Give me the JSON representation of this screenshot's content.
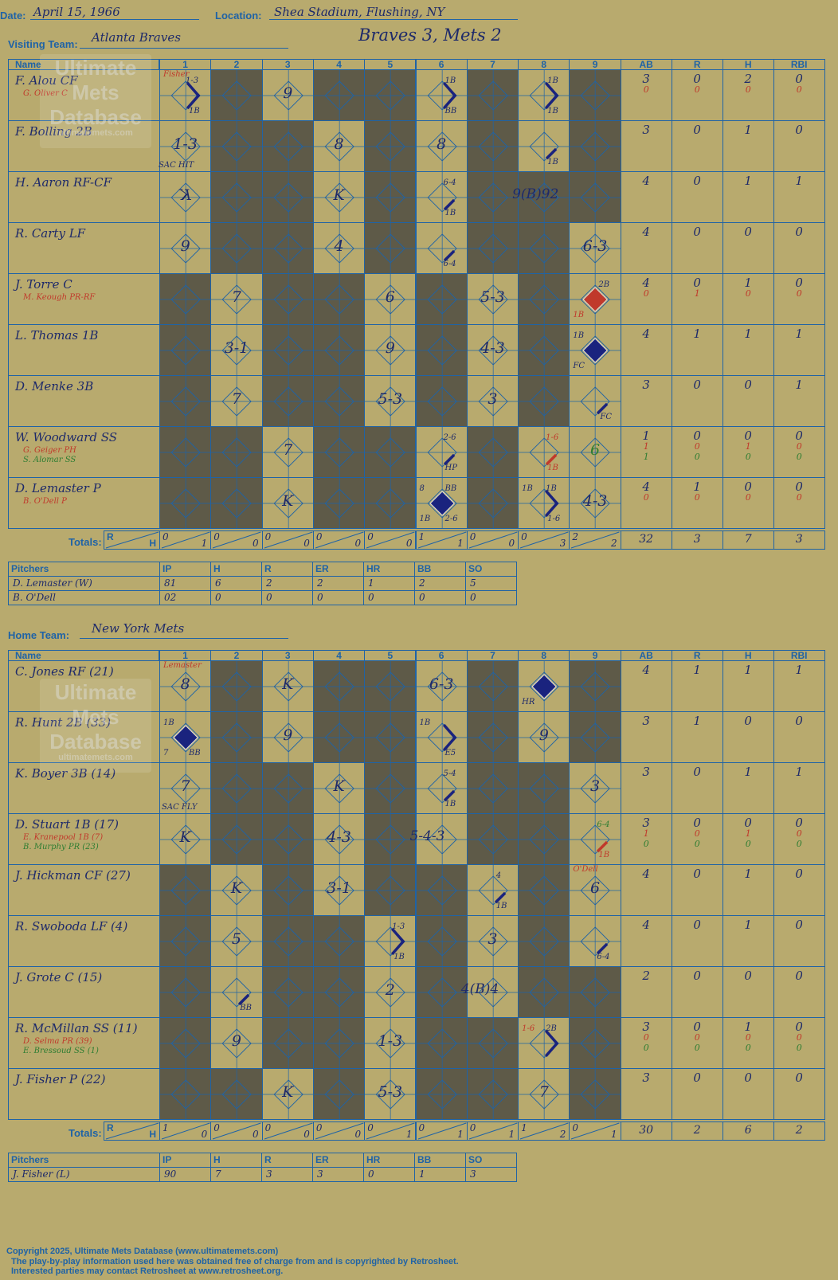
{
  "header": {
    "date_label": "Date:",
    "date": "April 15, 1966",
    "location_label": "Location:",
    "location": "Shea Stadium, Flushing, NY",
    "visiting_label": "Visiting Team:",
    "visiting_team": "Atlanta Braves",
    "home_label": "Home Team:",
    "home_team": "New York Mets",
    "score_title": "Braves 3, Mets 2"
  },
  "columns": {
    "name": "Name",
    "innings": [
      "1",
      "2",
      "3",
      "4",
      "5",
      "6",
      "7",
      "8",
      "9"
    ],
    "stats": [
      "AB",
      "R",
      "H",
      "RBI"
    ],
    "totals_label": "Totals:",
    "r_label": "R",
    "h_label": "H"
  },
  "watermark": {
    "line1": "Ultimate",
    "line2": "Mets",
    "line3": "Database",
    "url": "ultimatemets.com"
  },
  "visitors": {
    "players": [
      {
        "name": "F. Alou CF",
        "subs": [
          {
            "name": "G. Oliver C",
            "color": "red"
          }
        ],
        "ab": [
          "3",
          "0"
        ],
        "r": [
          "0",
          "0"
        ],
        "h": [
          "2",
          "0"
        ],
        "rbi": [
          "0",
          "0"
        ]
      },
      {
        "name": "F. Bolling 2B",
        "subs": [],
        "ab": [
          "3"
        ],
        "r": [
          "0"
        ],
        "h": [
          "1"
        ],
        "rbi": [
          "0"
        ]
      },
      {
        "name": "H. Aaron RF-CF",
        "subs": [],
        "ab": [
          "4"
        ],
        "r": [
          "0"
        ],
        "h": [
          "1"
        ],
        "rbi": [
          "1"
        ]
      },
      {
        "name": "R. Carty LF",
        "subs": [],
        "ab": [
          "4"
        ],
        "r": [
          "0"
        ],
        "h": [
          "0"
        ],
        "rbi": [
          "0"
        ]
      },
      {
        "name": "J. Torre C",
        "subs": [
          {
            "name": "M. Keough PR-RF",
            "color": "red"
          }
        ],
        "ab": [
          "4",
          "0"
        ],
        "r": [
          "0",
          "1"
        ],
        "h": [
          "1",
          "0"
        ],
        "rbi": [
          "0",
          "0"
        ]
      },
      {
        "name": "L. Thomas 1B",
        "subs": [],
        "ab": [
          "4"
        ],
        "r": [
          "1"
        ],
        "h": [
          "1"
        ],
        "rbi": [
          "1"
        ]
      },
      {
        "name": "D. Menke 3B",
        "subs": [],
        "ab": [
          "3"
        ],
        "r": [
          "0"
        ],
        "h": [
          "0"
        ],
        "rbi": [
          "1"
        ]
      },
      {
        "name": "W. Woodward SS",
        "subs": [
          {
            "name": "G. Geiger PH",
            "color": "red"
          },
          {
            "name": "S. Alomar SS",
            "color": "grn"
          }
        ],
        "ab": [
          "1",
          "1",
          "1"
        ],
        "r": [
          "0",
          "0",
          "0"
        ],
        "h": [
          "0",
          "1",
          "0"
        ],
        "rbi": [
          "0",
          "0",
          "0"
        ]
      },
      {
        "name": "D. Lemaster P",
        "subs": [
          {
            "name": "B. O'Dell P",
            "color": "red"
          }
        ],
        "ab": [
          "4",
          "0"
        ],
        "r": [
          "1",
          "0"
        ],
        "h": [
          "0",
          "0"
        ],
        "rbi": [
          "0",
          "0"
        ]
      }
    ],
    "totals": {
      "innings": [
        [
          "0",
          "1"
        ],
        [
          "0",
          "0"
        ],
        [
          "0",
          "0"
        ],
        [
          "0",
          "0"
        ],
        [
          "0",
          "0"
        ],
        [
          "1",
          "1"
        ],
        [
          "0",
          "0"
        ],
        [
          "0",
          "3"
        ],
        [
          "2",
          "2"
        ]
      ],
      "ab": "32",
      "r": "3",
      "h": "7",
      "rbi": "3"
    },
    "pitchers_label": "Pitchers",
    "pitcher_cols": [
      "IP",
      "H",
      "R",
      "ER",
      "HR",
      "BB",
      "SO"
    ],
    "pitchers": [
      {
        "name": "D. Lemaster (W)",
        "vals": [
          "81",
          "6",
          "2",
          "2",
          "1",
          "2",
          "5"
        ]
      },
      {
        "name": "B. O'Dell",
        "vals": [
          "02",
          "0",
          "0",
          "0",
          "0",
          "0",
          "0"
        ]
      }
    ]
  },
  "home": {
    "players": [
      {
        "name": "C. Jones RF (21)",
        "subs": [],
        "ab": [
          "4"
        ],
        "r": [
          "1"
        ],
        "h": [
          "1"
        ],
        "rbi": [
          "1"
        ]
      },
      {
        "name": "R. Hunt 2B (33)",
        "subs": [],
        "ab": [
          "3"
        ],
        "r": [
          "1"
        ],
        "h": [
          "0"
        ],
        "rbi": [
          "0"
        ]
      },
      {
        "name": "K. Boyer 3B (14)",
        "subs": [],
        "ab": [
          "3"
        ],
        "r": [
          "0"
        ],
        "h": [
          "1"
        ],
        "rbi": [
          "1"
        ]
      },
      {
        "name": "D. Stuart 1B (17)",
        "subs": [
          {
            "name": "E. Kranepool 1B (7)",
            "color": "red"
          },
          {
            "name": "B. Murphy PR (23)",
            "color": "grn"
          }
        ],
        "ab": [
          "3",
          "1",
          "0"
        ],
        "r": [
          "0",
          "0",
          "0"
        ],
        "h": [
          "0",
          "1",
          "0"
        ],
        "rbi": [
          "0",
          "0",
          "0"
        ]
      },
      {
        "name": "J. Hickman CF (27)",
        "subs": [],
        "ab": [
          "4"
        ],
        "r": [
          "0"
        ],
        "h": [
          "1"
        ],
        "rbi": [
          "0"
        ]
      },
      {
        "name": "R. Swoboda LF (4)",
        "subs": [],
        "ab": [
          "4"
        ],
        "r": [
          "0"
        ],
        "h": [
          "1"
        ],
        "rbi": [
          "0"
        ]
      },
      {
        "name": "J. Grote C (15)",
        "subs": [],
        "ab": [
          "2"
        ],
        "r": [
          "0"
        ],
        "h": [
          "0"
        ],
        "rbi": [
          "0"
        ]
      },
      {
        "name": "R. McMillan SS (11)",
        "subs": [
          {
            "name": "D. Selma PR (39)",
            "color": "red"
          },
          {
            "name": "E. Bressoud SS (1)",
            "color": "grn"
          }
        ],
        "ab": [
          "3",
          "0",
          "0"
        ],
        "r": [
          "0",
          "0",
          "0"
        ],
        "h": [
          "1",
          "0",
          "0"
        ],
        "rbi": [
          "0",
          "0",
          "0"
        ]
      },
      {
        "name": "J. Fisher P (22)",
        "subs": [],
        "ab": [
          "3"
        ],
        "r": [
          "0"
        ],
        "h": [
          "0"
        ],
        "rbi": [
          "0"
        ]
      }
    ],
    "totals": {
      "innings": [
        [
          "1",
          "0"
        ],
        [
          "0",
          "0"
        ],
        [
          "0",
          "0"
        ],
        [
          "0",
          "0"
        ],
        [
          "0",
          "1"
        ],
        [
          "0",
          "1"
        ],
        [
          "0",
          "1"
        ],
        [
          "1",
          "2"
        ],
        [
          "0",
          "1"
        ]
      ],
      "ab": "30",
      "r": "2",
      "h": "6",
      "rbi": "2"
    },
    "pitchers_label": "Pitchers",
    "pitcher_cols": [
      "IP",
      "H",
      "R",
      "ER",
      "HR",
      "BB",
      "SO"
    ],
    "pitchers": [
      {
        "name": "J. Fisher (L)",
        "vals": [
          "90",
          "7",
          "3",
          "3",
          "0",
          "1",
          "3"
        ]
      }
    ]
  },
  "visitor_plays": [
    {
      "row": 0,
      "col": 0,
      "text": "",
      "notes": [
        {
          "t": "Fisher",
          "x": 4,
          "y": -2,
          "c": "red"
        },
        {
          "t": "1-3",
          "x": 32,
          "y": 6
        },
        {
          "t": "1B",
          "x": 36,
          "y": 44
        }
      ],
      "path": "r"
    },
    {
      "row": 0,
      "col": 2,
      "text": "9"
    },
    {
      "row": 0,
      "col": 5,
      "text": "",
      "notes": [
        {
          "t": "1B",
          "x": 36,
          "y": 6
        },
        {
          "t": "BB",
          "x": 36,
          "y": 44
        }
      ],
      "path": "r"
    },
    {
      "row": 0,
      "col": 7,
      "text": "",
      "notes": [
        {
          "t": "1B",
          "x": 36,
          "y": 6
        },
        {
          "t": "1B",
          "x": 36,
          "y": 44
        }
      ],
      "path": "r"
    },
    {
      "row": 1,
      "col": 0,
      "text": "1-3",
      "notes": [
        {
          "t": "SAC HIT",
          "x": -2,
          "y": 48
        }
      ]
    },
    {
      "row": 1,
      "col": 3,
      "text": "8"
    },
    {
      "row": 1,
      "col": 5,
      "text": "8"
    },
    {
      "row": 1,
      "col": 7,
      "text": "",
      "notes": [
        {
          "t": "1B",
          "x": 36,
          "y": 44
        }
      ],
      "path": "s"
    },
    {
      "row": 2,
      "col": 0,
      "text": "K",
      "mirror": true
    },
    {
      "row": 2,
      "col": 3,
      "text": "K"
    },
    {
      "row": 2,
      "col": 5,
      "text": "",
      "notes": [
        {
          "t": "6-4",
          "x": 34,
          "y": 6
        },
        {
          "t": "1B",
          "x": 36,
          "y": 44
        }
      ],
      "path": "s"
    },
    {
      "row": 2,
      "col": 7,
      "text": "9(B)92",
      "wide": true
    },
    {
      "row": 3,
      "col": 0,
      "text": "9"
    },
    {
      "row": 3,
      "col": 3,
      "text": "4"
    },
    {
      "row": 3,
      "col": 5,
      "text": "",
      "notes": [
        {
          "t": "6-4",
          "x": 34,
          "y": 44
        }
      ],
      "path": "s"
    },
    {
      "row": 3,
      "col": 8,
      "text": "6-3"
    },
    {
      "row": 4,
      "col": 1,
      "text": "7"
    },
    {
      "row": 4,
      "col": 4,
      "text": "6"
    },
    {
      "row": 4,
      "col": 6,
      "text": "5-3"
    },
    {
      "row": 4,
      "col": 8,
      "text": "",
      "notes": [
        {
          "t": "2B",
          "x": 36,
          "y": 6
        },
        {
          "t": "1B",
          "x": 4,
          "y": 44,
          "c": "red"
        }
      ],
      "fill": "red"
    },
    {
      "row": 5,
      "col": 1,
      "text": "3-1"
    },
    {
      "row": 5,
      "col": 4,
      "text": "9"
    },
    {
      "row": 5,
      "col": 6,
      "text": "4-3"
    },
    {
      "row": 5,
      "col": 8,
      "text": "",
      "notes": [
        {
          "t": "1B",
          "x": 4,
          "y": 6
        },
        {
          "t": "FC",
          "x": 4,
          "y": 44
        }
      ],
      "fill": "navy"
    },
    {
      "row": 6,
      "col": 1,
      "text": "7"
    },
    {
      "row": 6,
      "col": 4,
      "text": "5-3"
    },
    {
      "row": 6,
      "col": 6,
      "text": "3"
    },
    {
      "row": 6,
      "col": 8,
      "text": "",
      "notes": [
        {
          "t": "FC",
          "x": 38,
          "y": 44
        }
      ],
      "path": "s"
    },
    {
      "row": 7,
      "col": 2,
      "text": "7"
    },
    {
      "row": 7,
      "col": 5,
      "text": "",
      "notes": [
        {
          "t": "2-6",
          "x": 34,
          "y": 6
        },
        {
          "t": "HP",
          "x": 36,
          "y": 44
        }
      ],
      "path": "s"
    },
    {
      "row": 7,
      "col": 7,
      "text": "",
      "notes": [
        {
          "t": "1-6",
          "x": 34,
          "y": 6,
          "c": "red"
        },
        {
          "t": "1B",
          "x": 36,
          "y": 44,
          "c": "red"
        }
      ],
      "path": "sred"
    },
    {
      "row": 7,
      "col": 8,
      "text": "6",
      "green": true
    },
    {
      "row": 8,
      "col": 2,
      "text": "K"
    },
    {
      "row": 8,
      "col": 5,
      "text": "",
      "notes": [
        {
          "t": "8",
          "x": 4,
          "y": 6
        },
        {
          "t": "BB",
          "x": 36,
          "y": 6
        },
        {
          "t": "1B",
          "x": 4,
          "y": 44
        },
        {
          "t": "2-6",
          "x": 36,
          "y": 44
        }
      ],
      "fill": "navy"
    },
    {
      "row": 8,
      "col": 7,
      "text": "",
      "notes": [
        {
          "t": "1B",
          "x": 4,
          "y": 6
        },
        {
          "t": "1B",
          "x": 34,
          "y": 6
        },
        {
          "t": "1-6",
          "x": 36,
          "y": 44
        }
      ],
      "path": "r"
    },
    {
      "row": 8,
      "col": 8,
      "text": "4-3"
    }
  ],
  "home_plays": [
    {
      "row": 0,
      "col": 0,
      "text": "8",
      "notes": [
        {
          "t": "Lemaster",
          "x": 4,
          "y": -2,
          "c": "red"
        }
      ]
    },
    {
      "row": 0,
      "col": 2,
      "text": "K"
    },
    {
      "row": 0,
      "col": 5,
      "text": "6-3"
    },
    {
      "row": 0,
      "col": 7,
      "text": "",
      "notes": [
        {
          "t": "HR",
          "x": 4,
          "y": 44
        }
      ],
      "fill": "navy"
    },
    {
      "row": 1,
      "col": 0,
      "text": "",
      "notes": [
        {
          "t": "1B",
          "x": 4,
          "y": 6
        },
        {
          "t": "7",
          "x": 4,
          "y": 44
        },
        {
          "t": "BB",
          "x": 36,
          "y": 44
        }
      ],
      "fill": "navy"
    },
    {
      "row": 1,
      "col": 2,
      "text": "9"
    },
    {
      "row": 1,
      "col": 5,
      "text": "",
      "notes": [
        {
          "t": "1B",
          "x": 4,
          "y": 6
        },
        {
          "t": "E5",
          "x": 36,
          "y": 44
        }
      ],
      "path": "r"
    },
    {
      "row": 1,
      "col": 7,
      "text": "9"
    },
    {
      "row": 2,
      "col": 0,
      "text": "7",
      "notes": [
        {
          "t": "SAC FLY",
          "x": 2,
          "y": 48
        }
      ]
    },
    {
      "row": 2,
      "col": 3,
      "text": "K"
    },
    {
      "row": 2,
      "col": 5,
      "text": "",
      "notes": [
        {
          "t": "5-4",
          "x": 34,
          "y": 6
        },
        {
          "t": "1B",
          "x": 36,
          "y": 44
        }
      ],
      "path": "s"
    },
    {
      "row": 2,
      "col": 8,
      "text": "3"
    },
    {
      "row": 3,
      "col": 0,
      "text": "K"
    },
    {
      "row": 3,
      "col": 3,
      "text": "4-3"
    },
    {
      "row": 3,
      "col": 5,
      "text": "5-4-3",
      "wide": true
    },
    {
      "row": 3,
      "col": 8,
      "text": "",
      "notes": [
        {
          "t": "6-4",
          "x": 34,
          "y": 6,
          "c": "grn"
        },
        {
          "t": "1B",
          "x": 36,
          "y": 44,
          "c": "red"
        }
      ],
      "path": "sred"
    },
    {
      "row": 4,
      "col": 1,
      "text": "K"
    },
    {
      "row": 4,
      "col": 3,
      "text": "3-1"
    },
    {
      "row": 4,
      "col": 6,
      "text": "",
      "notes": [
        {
          "t": "4",
          "x": 36,
          "y": 6
        },
        {
          "t": "1B",
          "x": 36,
          "y": 44
        }
      ],
      "path": "s"
    },
    {
      "row": 4,
      "col": 8,
      "text": "6",
      "notes": [
        {
          "t": "O'Dell",
          "x": 4,
          "y": -2,
          "c": "red"
        }
      ]
    },
    {
      "row": 5,
      "col": 1,
      "text": "5"
    },
    {
      "row": 5,
      "col": 4,
      "text": "",
      "notes": [
        {
          "t": "1-3",
          "x": 34,
          "y": 6
        },
        {
          "t": "1B",
          "x": 36,
          "y": 44
        }
      ],
      "path": "r"
    },
    {
      "row": 5,
      "col": 6,
      "text": "3"
    },
    {
      "row": 5,
      "col": 8,
      "text": "",
      "notes": [
        {
          "t": "6-4",
          "x": 34,
          "y": 44
        }
      ],
      "path": "s"
    },
    {
      "row": 6,
      "col": 1,
      "text": "",
      "notes": [
        {
          "t": "BB",
          "x": 36,
          "y": 44
        }
      ],
      "path": "s"
    },
    {
      "row": 6,
      "col": 4,
      "text": "2"
    },
    {
      "row": 6,
      "col": 6,
      "text": "4(B)4",
      "wide": true
    },
    {
      "row": 7,
      "col": 1,
      "text": "9"
    },
    {
      "row": 7,
      "col": 4,
      "text": "1-3"
    },
    {
      "row": 7,
      "col": 7,
      "text": "",
      "notes": [
        {
          "t": "1-6",
          "x": 4,
          "y": 6,
          "c": "red"
        },
        {
          "t": "2B",
          "x": 34,
          "y": 6
        }
      ],
      "path": "r"
    },
    {
      "row": 8,
      "col": 2,
      "text": "K"
    },
    {
      "row": 8,
      "col": 4,
      "text": "5-3"
    },
    {
      "row": 8,
      "col": 7,
      "text": "7"
    }
  ],
  "visitor_light": [
    [
      0,
      2,
      5,
      7
    ],
    [
      0,
      3,
      5,
      7
    ],
    [
      0,
      3,
      5
    ],
    [
      0,
      3,
      5,
      8
    ],
    [
      1,
      4,
      6,
      8
    ],
    [
      1,
      4,
      6,
      8
    ],
    [
      1,
      4,
      6,
      8
    ],
    [
      2,
      5,
      7,
      8
    ],
    [
      2,
      5,
      7,
      8
    ]
  ],
  "home_light": [
    [
      0,
      2,
      5,
      7
    ],
    [
      0,
      2,
      5,
      7
    ],
    [
      0,
      3,
      5,
      8
    ],
    [
      0,
      3,
      5,
      8
    ],
    [
      1,
      3,
      6,
      8
    ],
    [
      1,
      4,
      6,
      8
    ],
    [
      1,
      4,
      6
    ],
    [
      1,
      4,
      7
    ],
    [
      2,
      4,
      7
    ]
  ],
  "footer": {
    "line1": "Copyright 2025, Ultimate Mets Database (www.ultimatemets.com)",
    "line2": "The play-by-play information used here was obtained free of charge from and is copyrighted by Retrosheet.",
    "line3": "Interested parties may contact Retrosheet at www.retrosheet.org."
  }
}
